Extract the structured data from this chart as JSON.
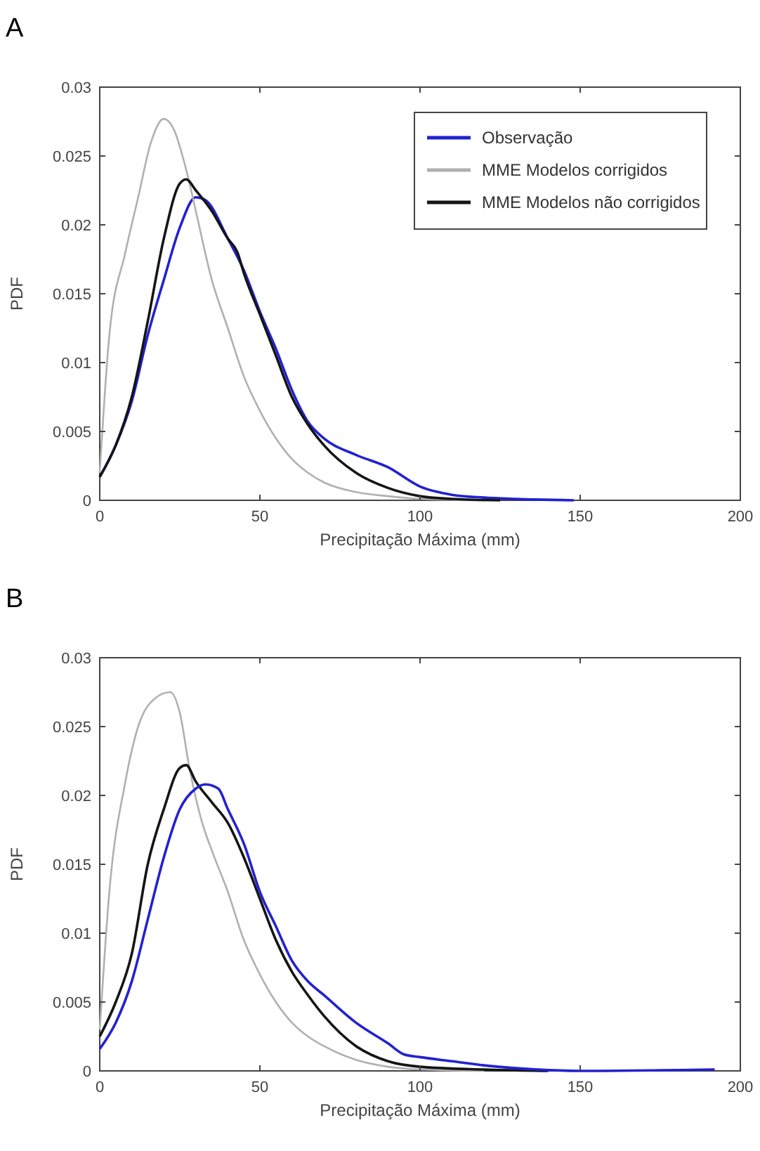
{
  "chart_data": [
    {
      "type": "line",
      "title": "A",
      "xlabel": "Precipitação Máxima (mm)",
      "ylabel": "PDF",
      "xlim": [
        0,
        200
      ],
      "ylim": [
        0,
        0.03
      ],
      "xticks": [
        0,
        50,
        100,
        150,
        200
      ],
      "yticks": [
        0,
        0.005,
        0.01,
        0.015,
        0.02,
        0.025,
        0.03
      ],
      "legend": "top right",
      "grid": false,
      "series": [
        {
          "name": "Observação",
          "color": "#2222d0",
          "x": [
            0,
            5,
            10,
            15,
            20,
            25,
            30,
            33,
            40,
            45,
            50,
            55,
            60,
            65,
            70,
            80,
            90,
            100,
            110,
            120,
            130,
            148
          ],
          "values": [
            0.0017,
            0.004,
            0.0072,
            0.012,
            0.016,
            0.0198,
            0.022,
            0.0218,
            0.019,
            0.0167,
            0.0137,
            0.011,
            0.008,
            0.0057,
            0.0045,
            0.0033,
            0.0024,
            0.001,
            0.0004,
            0.0002,
            0.0001,
            0
          ]
        },
        {
          "name": "MME Modelos corrigidos",
          "color": "#b0b0b0",
          "x": [
            0,
            3,
            8,
            12,
            16,
            20,
            23,
            27,
            30,
            35,
            40,
            45,
            50,
            55,
            60,
            65,
            70,
            80,
            90,
            100,
            120
          ],
          "values": [
            0.002,
            0.012,
            0.018,
            0.022,
            0.026,
            0.0277,
            0.027,
            0.024,
            0.021,
            0.016,
            0.0125,
            0.009,
            0.0065,
            0.0045,
            0.003,
            0.002,
            0.0013,
            0.0006,
            0.0003,
            0.0001,
            0
          ]
        },
        {
          "name": "MME Modelos não corrigidos",
          "color": "#151515",
          "x": [
            0,
            5,
            10,
            15,
            20,
            25,
            27,
            30,
            35,
            40,
            43,
            45,
            50,
            55,
            60,
            65,
            70,
            80,
            90,
            100,
            110,
            125
          ],
          "values": [
            0.0017,
            0.004,
            0.0075,
            0.013,
            0.019,
            0.023,
            0.0233,
            0.0225,
            0.021,
            0.019,
            0.018,
            0.0165,
            0.0135,
            0.0105,
            0.0075,
            0.0055,
            0.004,
            0.002,
            0.0009,
            0.0003,
            0.0001,
            0
          ]
        }
      ]
    },
    {
      "type": "line",
      "title": "B",
      "xlabel": "Precipitação Máxima (mm)",
      "ylabel": "PDF",
      "xlim": [
        0,
        200
      ],
      "ylim": [
        0,
        0.03
      ],
      "xticks": [
        0,
        50,
        100,
        150,
        200
      ],
      "yticks": [
        0,
        0.005,
        0.01,
        0.015,
        0.02,
        0.025,
        0.03
      ],
      "grid": false,
      "series": [
        {
          "color": "#b0b0b0",
          "x": [
            0,
            3,
            8,
            12,
            17,
            22,
            25,
            28,
            32,
            35,
            40,
            45,
            50,
            55,
            60,
            65,
            70,
            80,
            90,
            100,
            120
          ],
          "values": [
            0.003,
            0.013,
            0.021,
            0.025,
            0.027,
            0.0275,
            0.026,
            0.022,
            0.018,
            0.016,
            0.013,
            0.0095,
            0.007,
            0.005,
            0.0035,
            0.0025,
            0.0018,
            0.0008,
            0.0003,
            0.0001,
            0
          ]
        },
        {
          "color": "#151515",
          "x": [
            0,
            5,
            10,
            15,
            20,
            25,
            27,
            30,
            35,
            40,
            45,
            50,
            55,
            60,
            65,
            70,
            80,
            90,
            100,
            120,
            140
          ],
          "values": [
            0.0025,
            0.005,
            0.0085,
            0.015,
            0.019,
            0.022,
            0.0222,
            0.021,
            0.0195,
            0.018,
            0.0155,
            0.0125,
            0.0095,
            0.0072,
            0.0055,
            0.004,
            0.0018,
            0.0007,
            0.0003,
            0.0001,
            0
          ]
        },
        {
          "color": "#2222d0",
          "x": [
            0,
            5,
            10,
            15,
            20,
            25,
            30,
            33,
            37,
            40,
            45,
            50,
            55,
            60,
            65,
            70,
            80,
            90,
            95,
            100,
            110,
            120,
            130,
            150,
            192
          ],
          "values": [
            0.0016,
            0.0035,
            0.0065,
            0.011,
            0.0155,
            0.019,
            0.0205,
            0.0208,
            0.0205,
            0.019,
            0.0165,
            0.013,
            0.0105,
            0.008,
            0.0065,
            0.0055,
            0.0035,
            0.002,
            0.0012,
            0.001,
            0.0007,
            0.0004,
            0.0002,
            0,
            0.0001
          ]
        }
      ]
    }
  ]
}
